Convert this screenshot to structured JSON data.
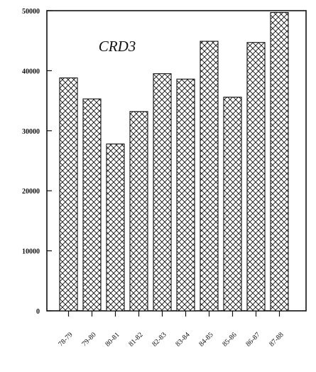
{
  "chart_data": {
    "type": "bar",
    "title": "CRD3",
    "xlabel": "",
    "ylabel": "",
    "categories": [
      "78-79",
      "79-80",
      "80-81",
      "81-82",
      "82-83",
      "83-84",
      "84-85",
      "85-86",
      "86-87",
      "87-88"
    ],
    "values": [
      38800,
      35300,
      27800,
      33200,
      39500,
      38600,
      44900,
      35600,
      44700,
      49700
    ],
    "ylim": [
      0,
      50000
    ],
    "yticks": [
      "0",
      "10000",
      "20000",
      "30000",
      "40000",
      "50000"
    ],
    "grid": false,
    "legend": "none",
    "bar_pattern": "crosshatch",
    "colors": {
      "bar_fill": "#ffffff",
      "bar_pattern": "#111111",
      "axis": "#111111"
    }
  }
}
